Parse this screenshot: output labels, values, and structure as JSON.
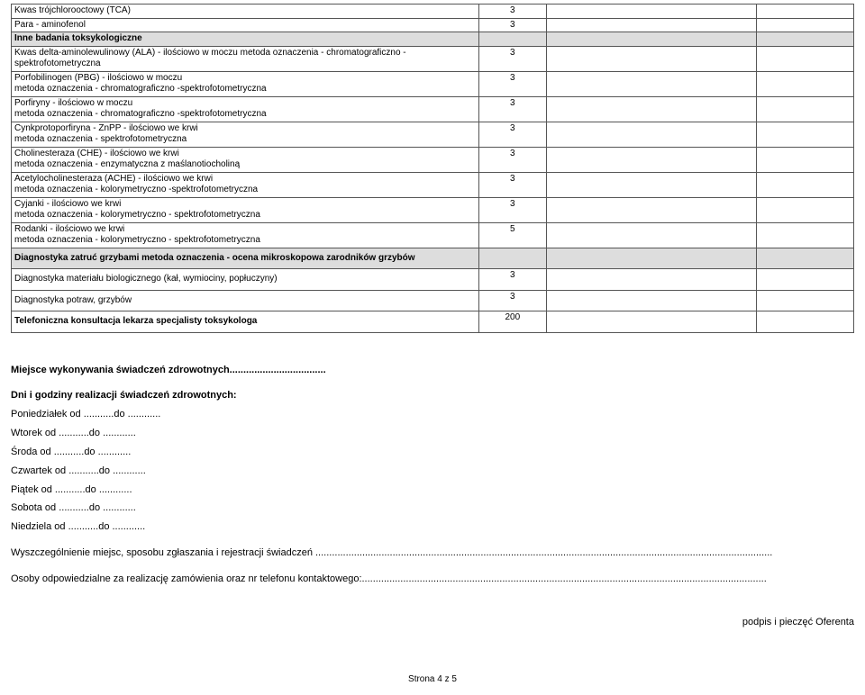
{
  "table": {
    "rows": [
      {
        "label": "Kwas trójchlorooctowy (TCA)",
        "val": "3",
        "shade": false,
        "bold": false
      },
      {
        "label": "Para - aminofenol",
        "val": "3",
        "shade": false,
        "bold": false
      },
      {
        "label": "Inne badania toksykologiczne",
        "val": "",
        "shade": true,
        "bold": true
      },
      {
        "label": "Kwas delta-aminolewulinowy (ALA) - ilościowo w moczu metoda oznaczenia - chromatograficzno -spektrofotometryczna",
        "val": "3",
        "shade": false,
        "bold": false
      },
      {
        "label": "Porfobilinogen (PBG) - ilościowo w moczu\nmetoda oznaczenia - chromatograficzno -spektrofotometryczna",
        "val": "3",
        "shade": false,
        "bold": false
      },
      {
        "label": "Porfiryny - ilościowo w moczu\nmetoda oznaczenia - chromatograficzno -spektrofotometryczna",
        "val": "3",
        "shade": false,
        "bold": false
      },
      {
        "label": "Cynkprotoporfiryna - ZnPP - ilościowo we krwi\nmetoda oznaczenia - spektrofotometryczna",
        "val": "3",
        "shade": false,
        "bold": false
      },
      {
        "label": "Cholinesteraza (CHE) - ilościowo we krwi\nmetoda oznaczenia - enzymatyczna z maślanotiocholiną",
        "val": "3",
        "shade": false,
        "bold": false
      },
      {
        "label": "Acetylocholinesteraza (ACHE) - ilościowo we krwi\nmetoda oznaczenia - kolorymetryczno -spektrofotometryczna",
        "val": "3",
        "shade": false,
        "bold": false
      },
      {
        "label": "Cyjanki - ilościowo we krwi\nmetoda oznaczenia - kolorymetryczno - spektrofotometryczna",
        "val": "3",
        "shade": false,
        "bold": false
      },
      {
        "label": "Rodanki - ilościowo we krwi\nmetoda oznaczenia - kolorymetryczno - spektrofotometryczna",
        "val": "5",
        "shade": false,
        "bold": false
      },
      {
        "label": "Diagnostyka zatruć grzybami metoda oznaczenia - ocena mikroskopowa zarodników grzybów",
        "val": "",
        "shade": true,
        "bold": true,
        "pad": true
      },
      {
        "label": "Diagnostyka materiału biologicznego (kał, wymiociny, popłuczyny)",
        "val": "3",
        "shade": false,
        "bold": false,
        "pad": true
      },
      {
        "label": "Diagnostyka potraw, grzybów",
        "val": "3",
        "shade": false,
        "bold": false,
        "pad": true
      },
      {
        "label": "Telefoniczna konsultacja lekarza specjalisty toksykologa",
        "val": "200",
        "shade": false,
        "bold": true,
        "pad": true
      }
    ]
  },
  "below": {
    "l1": "Miejsce wykonywania świadczeń zdrowotnych...................................",
    "l2": "Dni i godziny realizacji świadczeń zdrowotnych:",
    "l3": "Poniedziałek  od ...........do ............",
    "l4": "Wtorek  od ...........do ............",
    "l5": "Środa  od ...........do ............",
    "l6": "Czwartek  od ...........do ............",
    "l7": "Piątek     od ...........do ............",
    "l8": "Sobota  od ...........do ............",
    "l9": "Niedziela  od ...........do ............",
    "l10": "Wyszczególnienie miejsc, sposobu zgłaszania i rejestracji świadczeń ......................................................................................................................................................................",
    "l11": "Osoby odpowiedzialne za realizację zamówienia oraz nr telefonu kontaktowego:..................................................................................................................................................."
  },
  "signature": "podpis i pieczęć Oferenta",
  "footer": "Strona 4 z 5"
}
